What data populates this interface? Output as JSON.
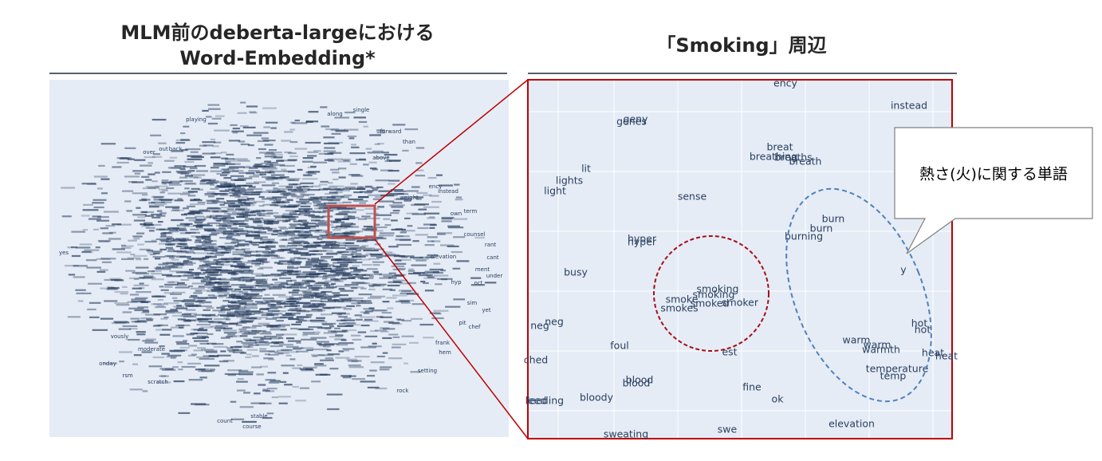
{
  "left": {
    "title_lines": [
      "MLM前のdeberta-largeにおける",
      "Word-Embedding*"
    ],
    "words": [
      "single",
      "along",
      "forward",
      "than",
      "instead",
      "weight",
      "counsel",
      "rant",
      "cant",
      "under",
      "yet",
      "chef",
      "rock",
      "setting",
      "moderate",
      "scratch",
      "stable",
      "course",
      "count",
      "vously",
      "onday",
      "rsm",
      "yes",
      "over",
      "out",
      "back",
      "playing",
      "above",
      "oct",
      "ment",
      "ency",
      "own",
      "term",
      "hyp",
      "sim",
      "pit",
      "frank",
      "hem",
      "elevation"
    ]
  },
  "right": {
    "title": "「Smoking」周辺",
    "words": [
      "ency",
      "instead",
      "geny",
      "genes",
      "breat",
      "breathing",
      "breaths",
      "breath",
      "lit",
      "lights",
      "light",
      "sense",
      "burn",
      "burn",
      "burning",
      "hyper",
      "hyper",
      "busy",
      "y",
      "smoking",
      "smoking",
      "smoke",
      "smoked",
      "smoker",
      "smokes",
      "neg",
      "neg",
      "hot",
      "hot",
      "foul",
      "warm",
      "warm",
      "warmth",
      "heat",
      "heat",
      "est",
      "ched",
      "temperature",
      "temp",
      "blood",
      "blood",
      "fine",
      "bloody",
      "ok",
      "leed",
      "leeding",
      "elevation",
      "swe",
      "sweating"
    ]
  },
  "callout": "熱さ(火)に関する単語"
}
